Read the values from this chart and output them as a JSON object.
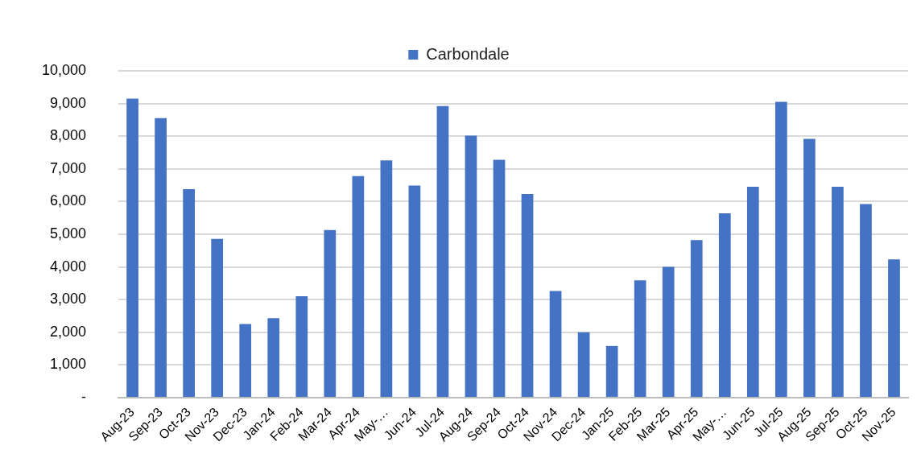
{
  "chart_data": {
    "type": "bar",
    "categories": [
      "Aug-23",
      "Sep-23",
      "Oct-23",
      "Nov-23",
      "Dec-23",
      "Jan-24",
      "Feb-24",
      "Mar-24",
      "Apr-24",
      "May-…",
      "Jun-24",
      "Jul-24",
      "Aug-24",
      "Sep-24",
      "Oct-24",
      "Nov-24",
      "Dec-24",
      "Jan-25",
      "Feb-25",
      "Mar-25",
      "Apr-25",
      "May-…",
      "Jun-25",
      "Jul-25",
      "Aug-25",
      "Sep-25",
      "Oct-25",
      "Nov-25"
    ],
    "series": [
      {
        "name": "Carbondale",
        "color": "#4472c4",
        "values": [
          9150,
          8550,
          6380,
          4860,
          2250,
          2430,
          3100,
          5130,
          6780,
          7260,
          6490,
          8920,
          8020,
          7280,
          6230,
          3260,
          2000,
          1580,
          3590,
          4000,
          4820,
          5640,
          6450,
          9050,
          7920,
          6450,
          5920,
          4230
        ]
      }
    ],
    "ylim": [
      0,
      10000
    ],
    "yticks": [
      {
        "value": 0,
        "label": "-"
      },
      {
        "value": 1000,
        "label": "1,000"
      },
      {
        "value": 2000,
        "label": "2,000"
      },
      {
        "value": 3000,
        "label": "3,000"
      },
      {
        "value": 4000,
        "label": "4,000"
      },
      {
        "value": 5000,
        "label": "5,000"
      },
      {
        "value": 6000,
        "label": "6,000"
      },
      {
        "value": 7000,
        "label": "7,000"
      },
      {
        "value": 8000,
        "label": "8,000"
      },
      {
        "value": 9000,
        "label": "9,000"
      },
      {
        "value": 10000,
        "label": "10,000"
      }
    ],
    "grid": "y",
    "legend": "top"
  }
}
